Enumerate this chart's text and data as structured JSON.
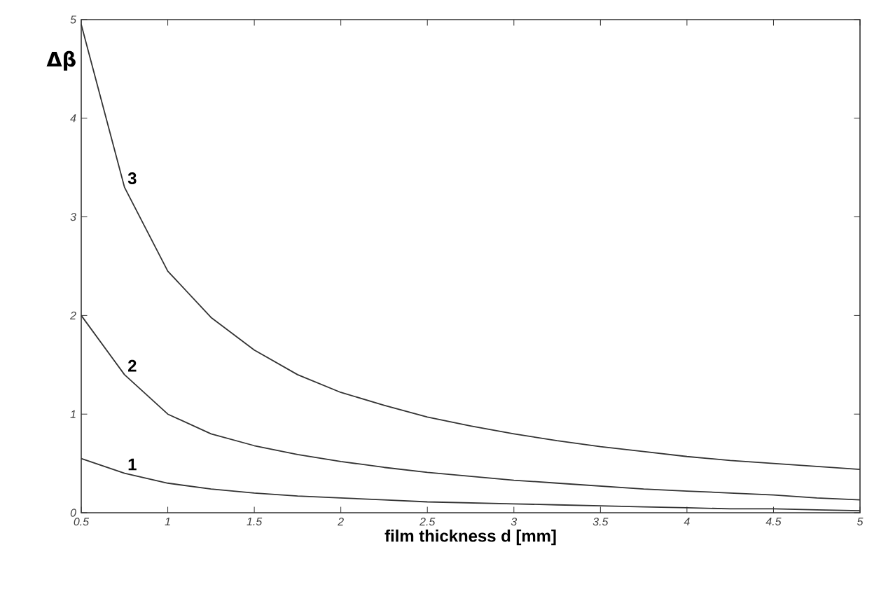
{
  "chart_data": {
    "type": "line",
    "xlabel": "film thickness d [mm]",
    "ylabel": "Δβ",
    "x": [
      0.5,
      0.75,
      1,
      1.25,
      1.5,
      1.75,
      2,
      2.25,
      2.5,
      2.75,
      3,
      3.25,
      3.5,
      3.75,
      4,
      4.25,
      4.5,
      4.75,
      5
    ],
    "series": [
      {
        "name": "1",
        "color": "#333333",
        "values": [
          0.55,
          0.4,
          0.3,
          0.24,
          0.2,
          0.17,
          0.15,
          0.13,
          0.11,
          0.1,
          0.09,
          0.08,
          0.07,
          0.06,
          0.05,
          0.04,
          0.04,
          0.03,
          0.02
        ]
      },
      {
        "name": "2",
        "color": "#333333",
        "values": [
          2.0,
          1.4,
          1.0,
          0.8,
          0.68,
          0.59,
          0.52,
          0.46,
          0.41,
          0.37,
          0.33,
          0.3,
          0.27,
          0.24,
          0.22,
          0.2,
          0.18,
          0.15,
          0.13
        ]
      },
      {
        "name": "3",
        "color": "#333333",
        "values": [
          4.95,
          3.3,
          2.45,
          1.98,
          1.65,
          1.4,
          1.22,
          1.09,
          0.97,
          0.88,
          0.8,
          0.73,
          0.67,
          0.62,
          0.57,
          0.53,
          0.5,
          0.47,
          0.44
        ]
      }
    ],
    "xlim": [
      0.5,
      5
    ],
    "ylim": [
      0,
      5
    ],
    "xticks": [
      0.5,
      1,
      1.5,
      2,
      2.5,
      3,
      3.5,
      4,
      4.5,
      5
    ],
    "yticks": [
      0,
      1,
      2,
      3,
      4,
      5
    ],
    "grid": false,
    "line_style": "solid"
  }
}
